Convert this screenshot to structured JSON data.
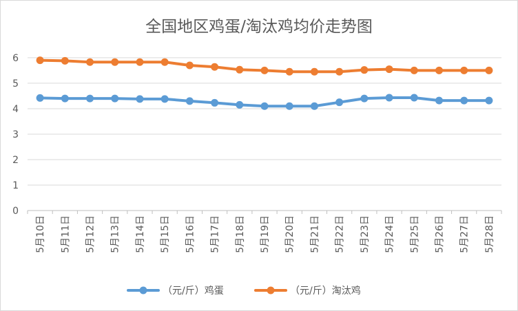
{
  "chart_data": {
    "type": "line",
    "title": "全国地区鸡蛋/淘汰鸡均价走势图",
    "xlabel": "",
    "ylabel": "",
    "ylim": [
      0,
      6.7
    ],
    "yticks": [
      "0",
      "1",
      "2",
      "3",
      "4",
      "5",
      "6"
    ],
    "categories": [
      "5月10日",
      "5月11日",
      "5月12日",
      "5月13日",
      "5月14日",
      "5月15日",
      "5月16日",
      "5月17日",
      "5月18日",
      "5月19日",
      "5月20日",
      "5月21日",
      "5月22日",
      "5月23日",
      "5月24日",
      "5月25日",
      "5月26日",
      "5月27日",
      "5月28日"
    ],
    "series": [
      {
        "name": "（元/斤）鸡蛋",
        "color": "#5b9bd5",
        "values": [
          4.42,
          4.4,
          4.4,
          4.4,
          4.38,
          4.38,
          4.3,
          4.23,
          4.15,
          4.1,
          4.1,
          4.1,
          4.25,
          4.4,
          4.43,
          4.43,
          4.32,
          4.32,
          4.32
        ]
      },
      {
        "name": "（元/斤）淘汰鸡",
        "color": "#ed7d31",
        "values": [
          5.9,
          5.88,
          5.83,
          5.83,
          5.83,
          5.83,
          5.7,
          5.64,
          5.53,
          5.5,
          5.45,
          5.45,
          5.45,
          5.52,
          5.55,
          5.5,
          5.5,
          5.5,
          5.5
        ]
      }
    ],
    "grid": true,
    "legend_position": "bottom"
  }
}
